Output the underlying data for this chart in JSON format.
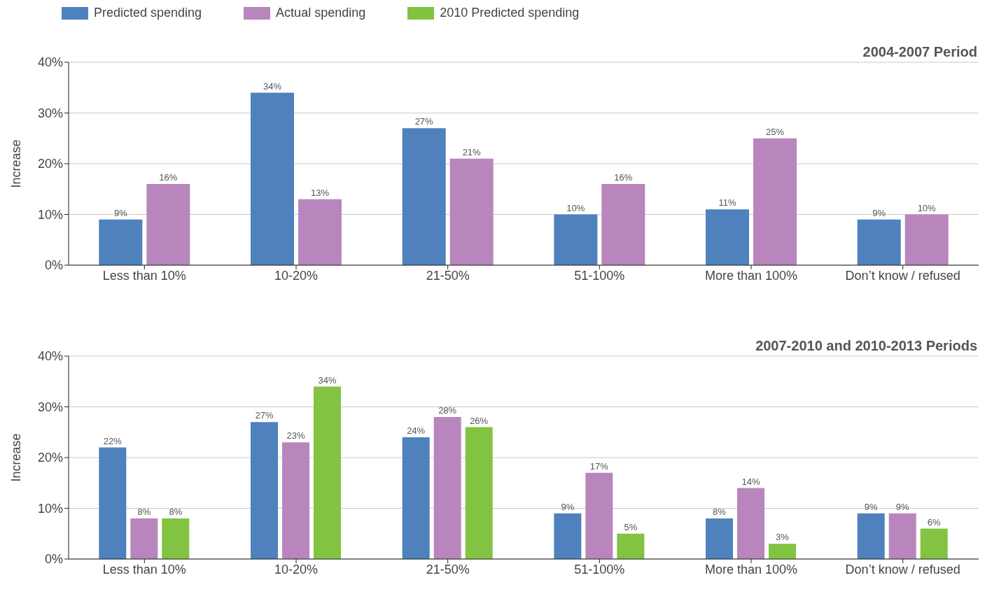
{
  "chart_data": [
    {
      "type": "bar",
      "title": "2004-2007 Period",
      "ylabel": "Increase",
      "categories": [
        "Less than 10%",
        "10-20%",
        "21-50%",
        "51-100%",
        "More than 100%",
        "Don’t know / refused"
      ],
      "series": [
        {
          "name": "Predicted spending",
          "color": "#4f81bd",
          "values": [
            9,
            34,
            27,
            10,
            11,
            9
          ],
          "value_labels": [
            "9%",
            "34%",
            "27%",
            "10%",
            "11%",
            "9%"
          ]
        },
        {
          "name": "Actual spending",
          "color": "#b886bd",
          "values": [
            16,
            13,
            21,
            16,
            25,
            10
          ],
          "value_labels": [
            "16%",
            "13%",
            "21%",
            "16%",
            "25%",
            "10%"
          ]
        }
      ],
      "ylim": [
        0,
        40
      ],
      "yticks": [
        {
          "value": 0,
          "label": "0%"
        },
        {
          "value": 10,
          "label": "10%"
        },
        {
          "value": 20,
          "label": "20%"
        },
        {
          "value": 30,
          "label": "30%"
        },
        {
          "value": 40,
          "label": "40%"
        }
      ],
      "grid": "y",
      "legend": "top"
    },
    {
      "type": "bar",
      "title": "2007-2010 and 2010-2013 Periods",
      "ylabel": "Increase",
      "categories": [
        "Less than 10%",
        "10-20%",
        "21-50%",
        "51-100%",
        "More than 100%",
        "Don’t know / refused"
      ],
      "series": [
        {
          "color": "#4f81bd",
          "values": [
            22,
            27,
            24,
            9,
            8,
            9
          ],
          "value_labels": [
            "22%",
            "27%",
            "24%",
            "9%",
            "8%",
            "9%"
          ]
        },
        {
          "color": "#b886bd",
          "values": [
            8,
            23,
            28,
            17,
            14,
            9
          ],
          "value_labels": [
            "8%",
            "23%",
            "28%",
            "17%",
            "14%",
            "9%"
          ]
        },
        {
          "name": "2010 Predicted spending",
          "color": "#82c341",
          "values": [
            8,
            34,
            26,
            5,
            3,
            6
          ],
          "value_labels": [
            "8%",
            "34%",
            "26%",
            "5%",
            "3%",
            "6%"
          ]
        }
      ],
      "ylim": [
        0,
        40
      ],
      "yticks": [
        {
          "value": 0,
          "label": "0%"
        },
        {
          "value": 10,
          "label": "10%"
        },
        {
          "value": 20,
          "label": "20%"
        },
        {
          "value": 30,
          "label": "30%"
        },
        {
          "value": 40,
          "label": "40%"
        }
      ],
      "grid": "y",
      "legend": "top"
    }
  ]
}
